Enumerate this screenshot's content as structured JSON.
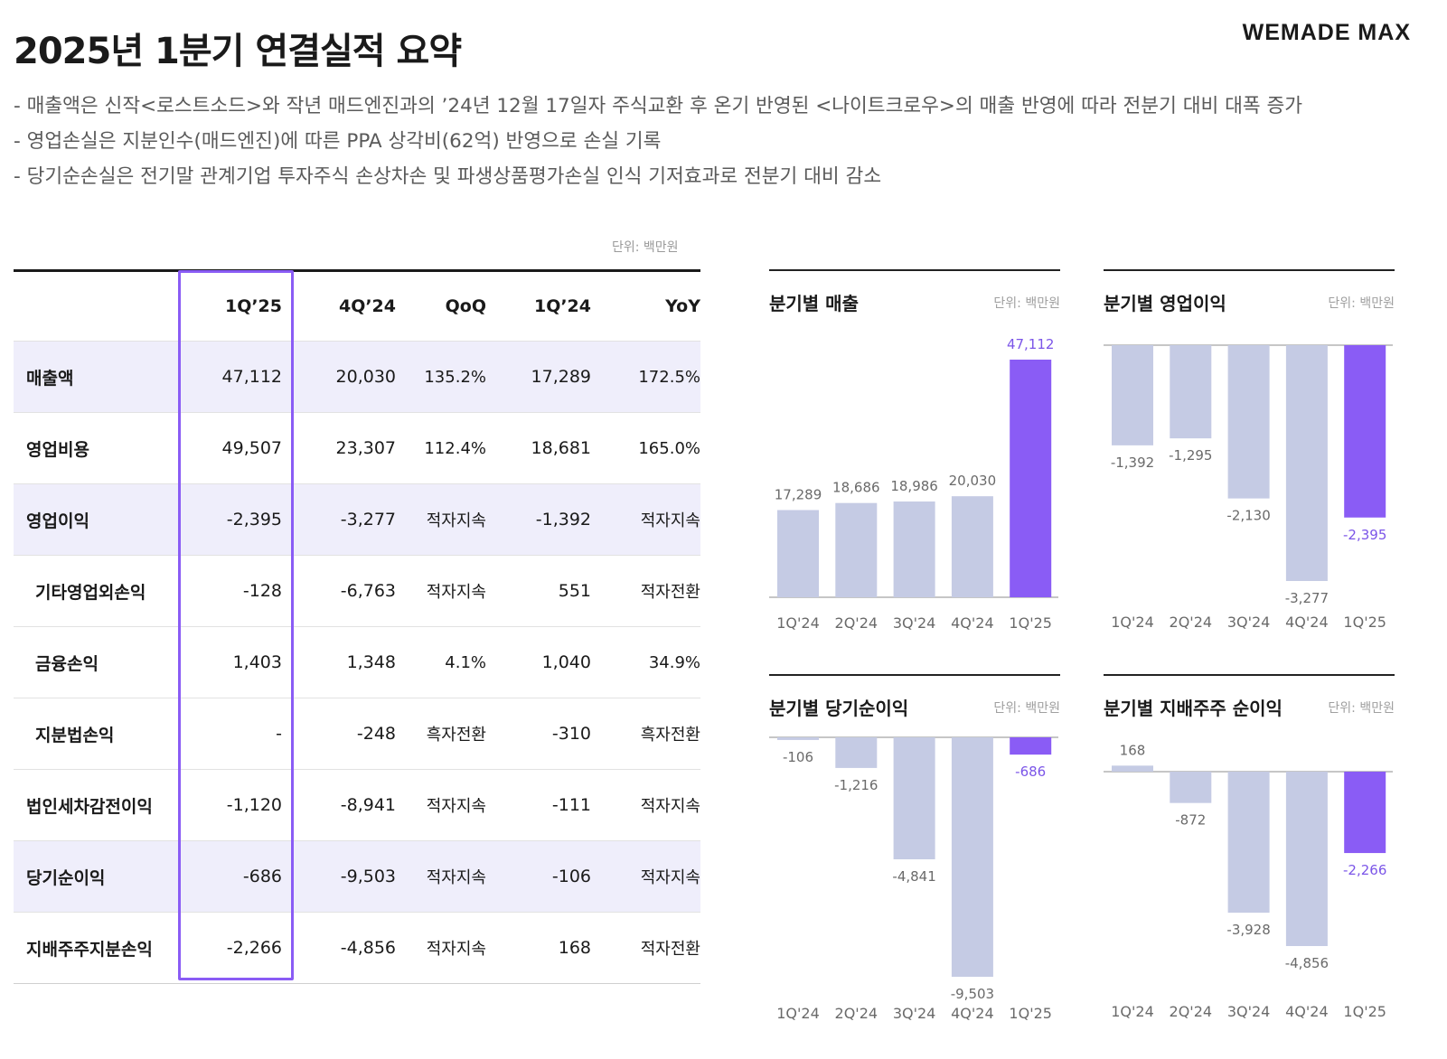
{
  "title": "2025년 1분기 연결실적 요약",
  "logo": "WEMADE MAX",
  "bullets": [
    "- 매출액은 신작<로스트소드>와 작년 매드엔진과의 ’24년 12월 17일자 주식교환 후 온기 반영된 <나이트크로우>의 매출 반영에 따라 전분기 대비 대폭 증가",
    "- 영업손실은 지분인수(매드엔진)에 따른 PPA 상각비(62억) 반영으로 손실 기록",
    "- 당기순손실은 전기말 관계기업 투자주식 손상차손 및 파생상품평가손실 인식 기저효과로 전분기 대비 감소"
  ],
  "table": {
    "unit": "단위: 백만원",
    "headers": [
      "",
      "1Q’25",
      "4Q’24",
      "QoQ",
      "1Q’24",
      "YoY"
    ],
    "rows": [
      {
        "label": "매출액",
        "values": [
          "47,112",
          "20,030",
          "135.2%",
          "17,289",
          "172.5%"
        ]
      },
      {
        "label": "영업비용",
        "values": [
          "49,507",
          "23,307",
          "112.4%",
          "18,681",
          "165.0%"
        ]
      },
      {
        "label": "영업이익",
        "values": [
          "-2,395",
          "-3,277",
          "적자지속",
          "-1,392",
          "적자지속"
        ]
      },
      {
        "label": "기타영업외손익",
        "values": [
          "-128",
          "-6,763",
          "적자지속",
          "551",
          "적자전환"
        ]
      },
      {
        "label": "금융손익",
        "values": [
          "1,403",
          "1,348",
          "4.1%",
          "1,040",
          "34.9%"
        ]
      },
      {
        "label": "지분법손익",
        "values": [
          "-",
          "-248",
          "흑자전환",
          "-310",
          "흑자전환"
        ]
      },
      {
        "label": "법인세차감전이익",
        "values": [
          "-1,120",
          "-8,941",
          "적자지속",
          "-111",
          "적자지속"
        ]
      },
      {
        "label": "당기순이익",
        "values": [
          "-686",
          "-9,503",
          "적자지속",
          "-106",
          "적자지속"
        ]
      },
      {
        "label": "지배주주지분손익",
        "values": [
          "-2,266",
          "-4,856",
          "적자지속",
          "168",
          "적자전환"
        ]
      }
    ]
  },
  "colors": {
    "bar": "#c5cbe4",
    "highlight": "#8a5cf5",
    "highlight_label": "#7b55e8",
    "band": "#efeefb"
  },
  "chart_data": [
    {
      "type": "bar",
      "title": "분기별 매출",
      "unit": "단위: 백만원",
      "categories": [
        "1Q'24",
        "2Q'24",
        "3Q'24",
        "4Q'24",
        "1Q'25"
      ],
      "values": [
        17289,
        18686,
        18986,
        20030,
        47112
      ],
      "labels": [
        "17,289",
        "18,686",
        "18,986",
        "20,030",
        "47,112"
      ]
    },
    {
      "type": "bar",
      "title": "분기별 영업이익",
      "unit": "단위: 백만원",
      "categories": [
        "1Q'24",
        "2Q'24",
        "3Q'24",
        "4Q'24",
        "1Q'25"
      ],
      "values": [
        -1392,
        -1295,
        -2130,
        -3277,
        -2395
      ],
      "labels": [
        "-1,392",
        "-1,295",
        "-2,130",
        "-3,277",
        "-2,395"
      ]
    },
    {
      "type": "bar",
      "title": "분기별 당기순이익",
      "unit": "단위: 백만원",
      "categories": [
        "1Q'24",
        "2Q'24",
        "3Q'24",
        "4Q'24",
        "1Q'25"
      ],
      "values": [
        -106,
        -1216,
        -4841,
        -9503,
        -686
      ],
      "labels": [
        "-106",
        "-1,216",
        "-4,841",
        "-9,503",
        "-686"
      ]
    },
    {
      "type": "bar",
      "title": "분기별 지배주주 순이익",
      "unit": "단위: 백만원",
      "categories": [
        "1Q'24",
        "2Q'24",
        "3Q'24",
        "4Q'24",
        "1Q'25"
      ],
      "values": [
        168,
        -872,
        -3928,
        -4856,
        -2266
      ],
      "labels": [
        "168",
        "-872",
        "-3,928",
        "-4,856",
        "-2,266"
      ]
    }
  ]
}
